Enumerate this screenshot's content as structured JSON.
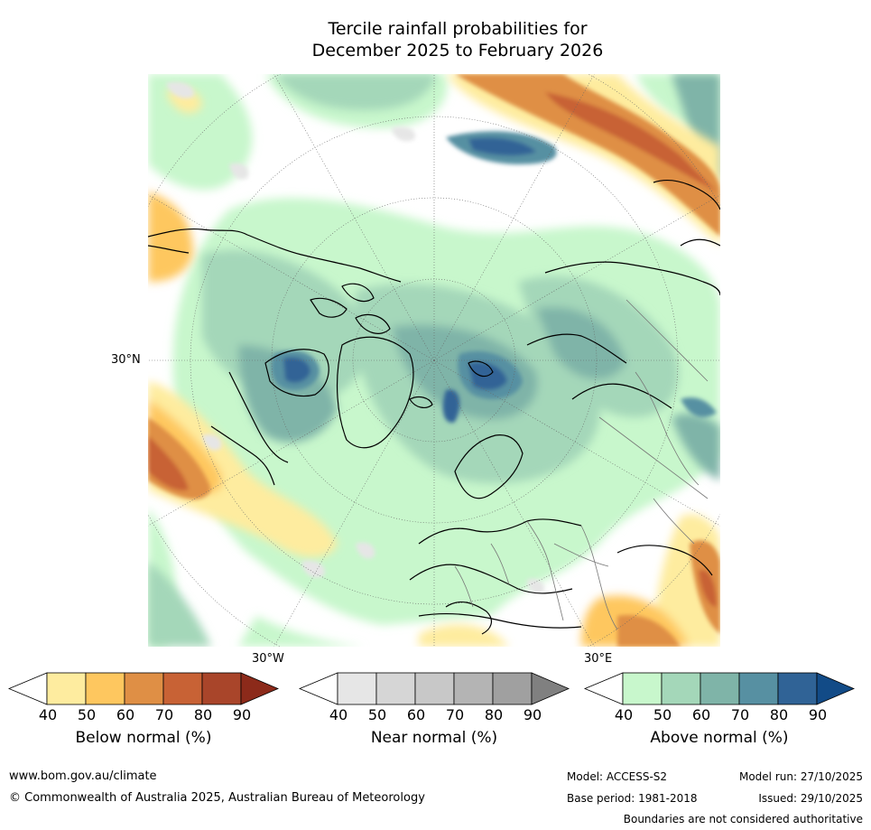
{
  "title": {
    "line1": "Tercile rainfall probabilities for",
    "line2": "December 2025 to February 2026"
  },
  "map_labels": {
    "lat_30n": "30°N",
    "lon_30w": "30°W",
    "lon_30e": "30°E"
  },
  "colorbars": [
    {
      "label": "Below normal (%)",
      "ticks": [
        "40",
        "50",
        "60",
        "70",
        "80",
        "90"
      ],
      "colors": [
        "#ffffff",
        "#feec9f",
        "#fec75f",
        "#df8f45",
        "#c86235",
        "#a9452a",
        "#8c2a1a"
      ]
    },
    {
      "label": "Near normal (%)",
      "ticks": [
        "40",
        "50",
        "60",
        "70",
        "80",
        "90"
      ],
      "colors": [
        "#ffffff",
        "#e6e6e6",
        "#d6d6d6",
        "#c8c8c8",
        "#b4b4b4",
        "#a0a0a0",
        "#808080"
      ]
    },
    {
      "label": "Above normal (%)",
      "ticks": [
        "40",
        "50",
        "60",
        "70",
        "80",
        "90"
      ],
      "colors": [
        "#ffffff",
        "#c8f7cc",
        "#a4d7b9",
        "#7fb4a8",
        "#5790a2",
        "#306396",
        "#124b87"
      ]
    }
  ],
  "footer": {
    "website": "www.bom.gov.au/climate",
    "copyright": "© Commonwealth of Australia 2025, Australian Bureau of Meteorology",
    "model": "Model: ACCESS-S2",
    "base_period": "Base period: 1981-2018",
    "model_run": "Model run: 27/10/2025",
    "issued": "Issued: 29/10/2025",
    "disclaimer": "Boundaries are not considered authoritative"
  }
}
